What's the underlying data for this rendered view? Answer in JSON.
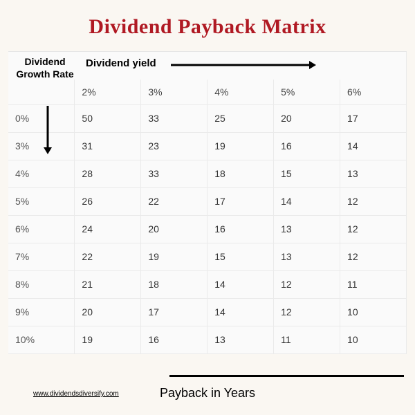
{
  "title": "Dividend Payback Matrix",
  "title_color": "#b01923",
  "corner_label": "Dividend Growth Rate",
  "yield_label": "Dividend yield",
  "yield_headers": [
    "2%",
    "3%",
    "4%",
    "5%",
    "6%"
  ],
  "growth_rates": [
    "0%",
    "3%",
    "4%",
    "5%",
    "6%",
    "7%",
    "8%",
    "9%",
    "10%"
  ],
  "rows": [
    [
      "50",
      "33",
      "25",
      "20",
      "17"
    ],
    [
      "31",
      "23",
      "19",
      "16",
      "14"
    ],
    [
      "28",
      "33",
      "18",
      "15",
      "13"
    ],
    [
      "26",
      "22",
      "17",
      "14",
      "12"
    ],
    [
      "24",
      "20",
      "16",
      "13",
      "12"
    ],
    [
      "22",
      "19",
      "15",
      "13",
      "12"
    ],
    [
      "21",
      "18",
      "14",
      "12",
      "11"
    ],
    [
      "20",
      "17",
      "14",
      "12",
      "10"
    ],
    [
      "19",
      "16",
      "13",
      "11",
      "10"
    ]
  ],
  "footer_label": "Payback in Years",
  "source_text": "www.dividendsdiversify.com",
  "colors": {
    "page_bg": "#faf7f2",
    "table_bg": "#fafafa",
    "border": "#eaeaea",
    "arrow": "#000000",
    "text": "#333333"
  },
  "fontsizes": {
    "title": 30,
    "headers": 15,
    "cells": 14,
    "footer": 18,
    "source": 10
  }
}
